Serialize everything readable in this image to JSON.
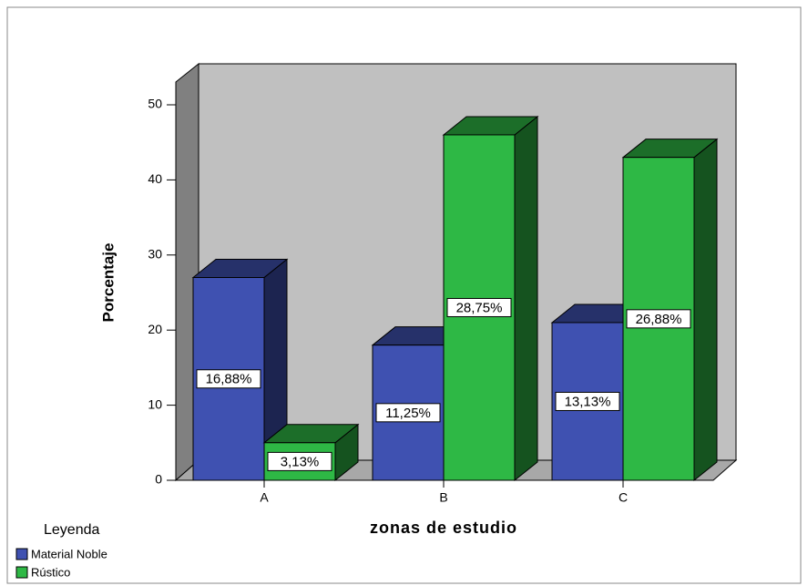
{
  "chart_data": {
    "type": "bar3d",
    "categories": [
      "A",
      "B",
      "C"
    ],
    "series": [
      {
        "name": "Material Noble",
        "color": "#3f51b1",
        "values": [
          27,
          18,
          21
        ],
        "labels": [
          "16,88%",
          "11,25%",
          "13,13%"
        ]
      },
      {
        "name": "Rústico",
        "color": "#2eb845",
        "values": [
          5,
          46,
          43
        ],
        "labels": [
          "3,13%",
          "28,75%",
          "26,88%"
        ]
      }
    ],
    "ylim": [
      0,
      50
    ],
    "yticks": [
      0,
      10,
      20,
      30,
      40,
      50
    ],
    "ylabel": "Porcentaje",
    "xlabel": "zonas de estudio",
    "legend_title": "Leyenda"
  }
}
